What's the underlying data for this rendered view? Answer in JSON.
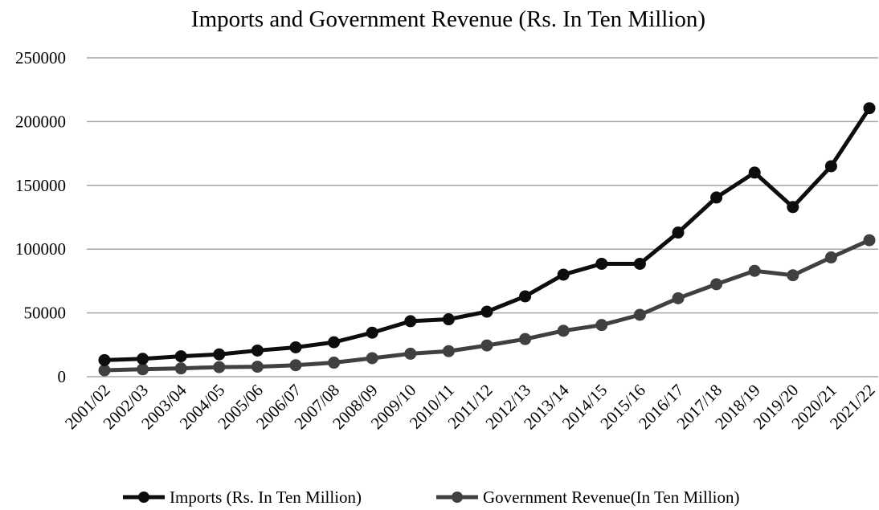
{
  "chart_data": {
    "type": "line",
    "title": "Imports and Government Revenue (Rs. In Ten Million)",
    "xlabel": "",
    "ylabel": "",
    "ylim": [
      0,
      250000
    ],
    "yticks": [
      "0",
      "50000",
      "100000",
      "150000",
      "200000",
      "250000"
    ],
    "grid": true,
    "legend_position": "bottom",
    "categories": [
      "2001/02",
      "2002/03",
      "2003/04",
      "2004/05",
      "2005/06",
      "2006/07",
      "2007/08",
      "2008/09",
      "2009/10",
      "2010/11",
      "2011/12",
      "2012/13",
      "2013/14",
      "2014/15",
      "2015/16",
      "2016/17",
      "2017/18",
      "2018/19",
      "2019/20",
      "2020/21",
      "2021/22"
    ],
    "series": [
      {
        "name": "Imports (Rs. In Ten Million)",
        "color": "#0d0d0d",
        "values": [
          13000,
          14000,
          16000,
          17500,
          20500,
          23000,
          27000,
          34500,
          43500,
          45000,
          51000,
          63000,
          80000,
          88500,
          88500,
          113000,
          140500,
          160000,
          133000,
          165000,
          210500
        ]
      },
      {
        "name": "Government Revenue(In Ten Million)",
        "color": "#404040",
        "values": [
          5000,
          5800,
          6500,
          7500,
          7800,
          9000,
          11000,
          14500,
          18000,
          20000,
          24500,
          29500,
          36000,
          40500,
          48500,
          61500,
          72500,
          83000,
          79500,
          93500,
          107000
        ]
      }
    ]
  }
}
